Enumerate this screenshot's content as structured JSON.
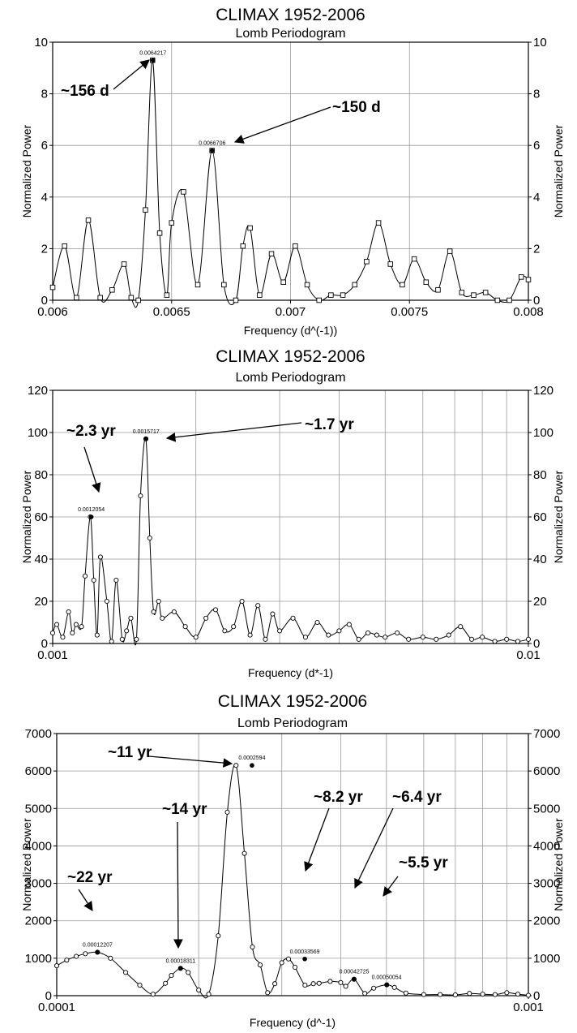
{
  "chart_data": [
    {
      "type": "line",
      "title": "CLIMAX 1952-2006",
      "subtitle": "Lomb Periodogram",
      "xlabel": "Frequency (d^(-1))",
      "ylabel": "Normalized Power",
      "y2label": "Normalized Power",
      "xscale": "linear",
      "xlim": [
        0.006,
        0.008
      ],
      "ylim": [
        0,
        10
      ],
      "xticks": [
        0.006,
        0.0065,
        0.007,
        0.0075,
        0.008
      ],
      "xtick_labels": [
        "0.006",
        "0.0065",
        "0.007",
        "0.0075",
        "0.008"
      ],
      "yticks": [
        0,
        2,
        4,
        6,
        8,
        10
      ],
      "ytick_labels": [
        "0",
        "2",
        "4",
        "6",
        "8",
        "10"
      ],
      "vgrid": [
        0.0065,
        0.007,
        0.0075
      ],
      "hgrid": [
        2,
        4,
        6,
        8
      ],
      "marker": "square",
      "series": [
        {
          "x": [
            0.006,
            0.00605,
            0.0061,
            0.00615,
            0.0062,
            0.00625,
            0.0063,
            0.00633,
            0.00636,
            0.00639,
            0.00642,
            0.00645,
            0.00648,
            0.0065,
            0.00655,
            0.00661,
            0.00667,
            0.00672,
            0.00677,
            0.0068,
            0.00683,
            0.00687,
            0.00692,
            0.00697,
            0.00702,
            0.00707,
            0.00712,
            0.00717,
            0.00722,
            0.00727,
            0.00732,
            0.00737,
            0.00742,
            0.00747,
            0.00752,
            0.00757,
            0.00762,
            0.00767,
            0.00772,
            0.00777,
            0.00782,
            0.00787,
            0.00792,
            0.00797,
            0.008
          ],
          "y": [
            0.5,
            2.1,
            0.1,
            3.1,
            0.1,
            0.4,
            1.4,
            0.1,
            0.0,
            3.5,
            9.3,
            2.6,
            0.2,
            3.0,
            4.2,
            0.6,
            5.8,
            0.6,
            0.0,
            2.1,
            2.8,
            0.2,
            1.8,
            0.7,
            2.1,
            0.6,
            0.0,
            0.2,
            0.2,
            0.6,
            1.5,
            3.0,
            1.4,
            0.6,
            1.6,
            0.7,
            0.4,
            1.9,
            0.3,
            0.2,
            0.3,
            0.0,
            0.0,
            0.9,
            0.8
          ]
        }
      ],
      "point_labels": [
        {
          "x": 0.0064217,
          "y": 9.3,
          "text": "0.0064217"
        },
        {
          "x": 0.0066706,
          "y": 5.8,
          "text": "0.0066706"
        }
      ],
      "annotations": [
        {
          "text": "~156 d",
          "target_x": 0.0064217,
          "target_y": 9.3
        },
        {
          "text": "~150 d",
          "target_x": 0.0066706,
          "target_y": 5.8
        }
      ]
    },
    {
      "type": "scatter",
      "title": "CLIMAX 1952-2006",
      "subtitle": "Lomb Periodogram",
      "xlabel": "Frequency (d*-1)",
      "ylabel": "Normalized Power",
      "y2label": "Normalized Power",
      "xscale": "log",
      "xlim": [
        0.001,
        0.01
      ],
      "ylim": [
        0,
        120
      ],
      "xticks": [
        0.001,
        0.01
      ],
      "xtick_labels": [
        "0.001",
        "0.01"
      ],
      "yticks": [
        0,
        20,
        40,
        60,
        80,
        100,
        120
      ],
      "ytick_labels": [
        "0",
        "20",
        "40",
        "60",
        "80",
        "100",
        "120"
      ],
      "vgrid": [
        0.002,
        0.003,
        0.004,
        0.005,
        0.006,
        0.007,
        0.008,
        0.009
      ],
      "hgrid": [
        20,
        40,
        60,
        80,
        100
      ],
      "marker": "circle",
      "series": [
        {
          "x": [
            0.001,
            0.00102,
            0.00105,
            0.00108,
            0.0011,
            0.00112,
            0.00115,
            0.00117,
            0.0012,
            0.00122,
            0.00124,
            0.00126,
            0.0013,
            0.00133,
            0.00136,
            0.0014,
            0.00143,
            0.00146,
            0.0015,
            0.00153,
            0.00157,
            0.0016,
            0.00163,
            0.00167,
            0.0017,
            0.0018,
            0.0019,
            0.002,
            0.0021,
            0.0022,
            0.0023,
            0.0024,
            0.0025,
            0.0026,
            0.0027,
            0.0028,
            0.0029,
            0.003,
            0.0032,
            0.0034,
            0.0036,
            0.0038,
            0.004,
            0.0042,
            0.0044,
            0.0046,
            0.0048,
            0.005,
            0.0053,
            0.0056,
            0.006,
            0.0064,
            0.0068,
            0.0072,
            0.0076,
            0.008,
            0.0085,
            0.009,
            0.0095,
            0.01
          ],
          "y": [
            5,
            9,
            3,
            15,
            5,
            9,
            8,
            32,
            60,
            30,
            4,
            41,
            20,
            1,
            30,
            2,
            6,
            12,
            2,
            70,
            97,
            50,
            15,
            20,
            12,
            15,
            8,
            3,
            12,
            16,
            6,
            8,
            20,
            4,
            18,
            2,
            14,
            6,
            12,
            3,
            10,
            4,
            6,
            9,
            2,
            5,
            4,
            3,
            5,
            2,
            3,
            2,
            4,
            8,
            2,
            3,
            1,
            2,
            1,
            2
          ]
        }
      ],
      "point_labels": [
        {
          "x": 0.0012054,
          "y": 60,
          "text": "0.0012054"
        },
        {
          "x": 0.0015717,
          "y": 97,
          "text": "0.0015717"
        }
      ],
      "annotations": [
        {
          "text": "~2.3 yr",
          "target_x": 0.0012054,
          "target_y": 60
        },
        {
          "text": "~1.7 yr",
          "target_x": 0.0015717,
          "target_y": 97
        }
      ]
    },
    {
      "type": "line",
      "title": "CLIMAX 1952-2006",
      "subtitle": "Lomb Periodogram",
      "xlabel": "Frequency (d^-1)",
      "ylabel": "Normalized Power",
      "y2label": "Normalized Power",
      "xscale": "log",
      "xlim": [
        0.0001,
        0.001
      ],
      "ylim": [
        0,
        7000
      ],
      "xticks": [
        0.0001,
        0.001
      ],
      "xtick_labels": [
        "0.0001",
        "0.001"
      ],
      "yticks": [
        0,
        1000,
        2000,
        3000,
        4000,
        5000,
        6000,
        7000
      ],
      "ytick_labels": [
        "0",
        "1000",
        "2000",
        "3000",
        "4000",
        "5000",
        "6000",
        "7000"
      ],
      "vgrid": [
        0.0002,
        0.0003,
        0.0004,
        0.0005,
        0.0006,
        0.0007,
        0.0008,
        0.0009
      ],
      "hgrid": [
        1000,
        2000,
        3000,
        4000,
        5000,
        6000
      ],
      "marker": "circle",
      "series": [
        {
          "x": [
            0.0001,
            0.000105,
            0.00011,
            0.000115,
            0.000122,
            0.00013,
            0.00014,
            0.00015,
            0.00016,
            0.00017,
            0.000175,
            0.000183,
            0.00019,
            0.0002,
            0.00021,
            0.00022,
            0.00023,
            0.00024,
            0.00025,
            0.00026,
            0.00027,
            0.00028,
            0.00029,
            0.0003,
            0.00031,
            0.00032,
            0.000336,
            0.00035,
            0.00036,
            0.00038,
            0.0004,
            0.00041,
            0.000427,
            0.00045,
            0.00047,
            0.000501,
            0.00052,
            0.00055,
            0.0006,
            0.00065,
            0.0007,
            0.00075,
            0.0008,
            0.00085,
            0.0009,
            0.00095,
            0.001
          ],
          "y": [
            800,
            950,
            1050,
            1120,
            1160,
            1000,
            620,
            280,
            40,
            330,
            540,
            730,
            620,
            150,
            40,
            1600,
            4900,
            6150,
            3800,
            1300,
            820,
            80,
            320,
            880,
            980,
            760,
            280,
            320,
            330,
            380,
            350,
            250,
            440,
            60,
            200,
            290,
            220,
            70,
            30,
            30,
            20,
            60,
            40,
            30,
            80,
            40,
            10
          ]
        }
      ],
      "point_labels": [
        {
          "x": 0.00012207,
          "y": 1160,
          "text": "0.00012207"
        },
        {
          "x": 0.00018311,
          "y": 730,
          "text": "0.00018311"
        },
        {
          "x": 0.0002594,
          "y": 6150,
          "text": "0.0002594"
        },
        {
          "x": 0.00033569,
          "y": 980,
          "text": "0.00033569"
        },
        {
          "x": 0.00042725,
          "y": 440,
          "text": "0.00042725"
        },
        {
          "x": 0.00050054,
          "y": 290,
          "text": "0.00050054"
        }
      ],
      "annotations": [
        {
          "text": "~22 yr",
          "target_x": 0.00012207,
          "target_y": 1160
        },
        {
          "text": "~14 yr",
          "target_x": 0.00018311,
          "target_y": 730
        },
        {
          "text": "~11 yr",
          "target_x": 0.0002594,
          "target_y": 6150
        },
        {
          "text": "~8.2 yr",
          "target_x": 0.00033569,
          "target_y": 980
        },
        {
          "text": "~6.4 yr",
          "target_x": 0.00042725,
          "target_y": 440
        },
        {
          "text": "~5.5 yr",
          "target_x": 0.00050054,
          "target_y": 290
        }
      ]
    }
  ]
}
